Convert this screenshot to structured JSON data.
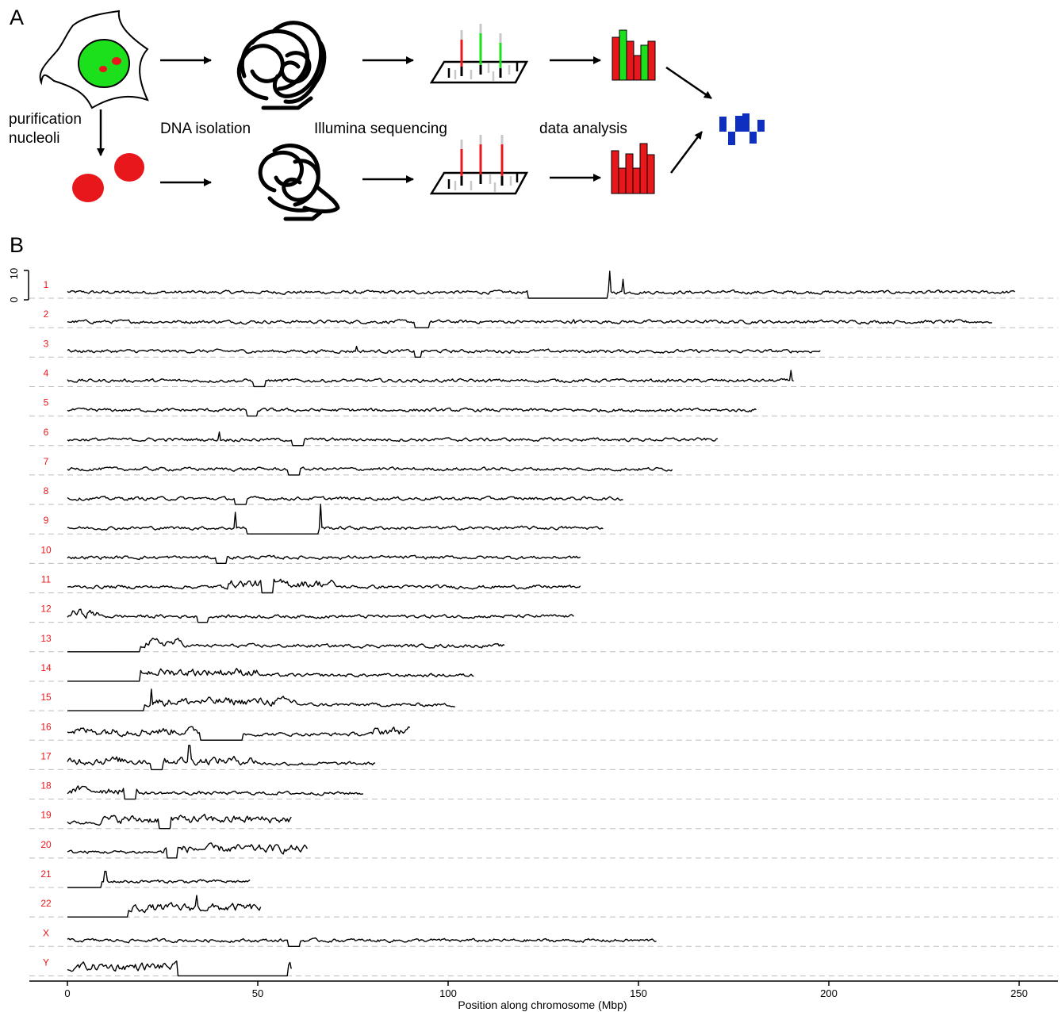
{
  "panel_a": {
    "label": "A",
    "steps": {
      "purification": [
        "purification",
        "nucleoli"
      ],
      "dna_isolation": "DNA isolation",
      "sequencing": "Illumina sequencing",
      "analysis": "data analysis"
    },
    "colors": {
      "nucleus": "#1be01b",
      "nucleoli": "#e8171b",
      "result": "#0f2fc0",
      "gray": "#c8c8c8"
    }
  },
  "panel_b": {
    "label": "B",
    "scale_bar_ticks": [
      "0",
      "10"
    ],
    "chart_data": {
      "type": "line",
      "xlabel": "Position along chromosome (Mbp)",
      "x_ticks": [
        0,
        50,
        100,
        150,
        200,
        250
      ],
      "xlim": [
        -10,
        260
      ],
      "ylim_per_track": [
        0,
        10
      ],
      "series": [
        {
          "name": "1",
          "length": 249,
          "gaps": [
            [
              121,
              142
            ]
          ],
          "spikes": [
            [
              142.5,
              10
            ],
            [
              146,
              7
            ]
          ],
          "wide": []
        },
        {
          "name": "2",
          "length": 243,
          "gaps": [
            [
              91,
              95
            ]
          ],
          "spikes": [
            [
              133,
              3
            ]
          ],
          "wide": []
        },
        {
          "name": "3",
          "length": 198,
          "gaps": [
            [
              91,
              93
            ]
          ],
          "spikes": [
            [
              76,
              4
            ]
          ],
          "wide": []
        },
        {
          "name": "4",
          "length": 191,
          "gaps": [
            [
              49,
              52
            ]
          ],
          "spikes": [
            [
              190,
              6
            ]
          ],
          "wide": []
        },
        {
          "name": "5",
          "length": 181,
          "gaps": [
            [
              47,
              50
            ]
          ],
          "spikes": [],
          "wide": []
        },
        {
          "name": "6",
          "length": 171,
          "gaps": [
            [
              59,
              62
            ]
          ],
          "spikes": [
            [
              40,
              5
            ]
          ],
          "wide": []
        },
        {
          "name": "7",
          "length": 159,
          "gaps": [
            [
              58,
              61
            ]
          ],
          "spikes": [
            [
              61,
              8
            ]
          ],
          "wide": []
        },
        {
          "name": "8",
          "length": 146,
          "gaps": [
            [
              44,
              47
            ]
          ],
          "spikes": [],
          "wide": []
        },
        {
          "name": "9",
          "length": 141,
          "gaps": [
            [
              47,
              66
            ]
          ],
          "spikes": [
            [
              44,
              8
            ],
            [
              66.5,
              11
            ]
          ],
          "wide": []
        },
        {
          "name": "10",
          "length": 135,
          "gaps": [
            [
              39,
              42
            ]
          ],
          "spikes": [],
          "wide": []
        },
        {
          "name": "11",
          "length": 135,
          "gaps": [
            [
              51,
              54
            ]
          ],
          "spikes": [],
          "wide": [
            [
              40,
              70
            ]
          ]
        },
        {
          "name": "12",
          "length": 133,
          "gaps": [
            [
              34,
              37
            ]
          ],
          "spikes": [],
          "wide": [
            [
              0,
              8
            ]
          ]
        },
        {
          "name": "13",
          "length": 115,
          "gaps": [
            [
              0,
              19
            ]
          ],
          "spikes": [],
          "wide": [
            [
              19,
              30
            ]
          ]
        },
        {
          "name": "14",
          "length": 107,
          "gaps": [
            [
              0,
              19
            ]
          ],
          "spikes": [],
          "wide": [
            [
              19,
              50
            ]
          ]
        },
        {
          "name": "15",
          "length": 102,
          "gaps": [
            [
              0,
              20
            ]
          ],
          "spikes": [
            [
              22,
              8
            ]
          ],
          "wide": [
            [
              20,
              60
            ]
          ]
        },
        {
          "name": "16",
          "length": 90,
          "gaps": [
            [
              35,
              46
            ]
          ],
          "spikes": [],
          "wide": [
            [
              0,
              35
            ],
            [
              80,
              90
            ]
          ]
        },
        {
          "name": "17",
          "length": 81,
          "gaps": [
            [
              22,
              25
            ]
          ],
          "spikes": [
            [
              32,
              9
            ]
          ],
          "wide": [
            [
              0,
              50
            ]
          ]
        },
        {
          "name": "18",
          "length": 78,
          "gaps": [
            [
              15,
              18
            ]
          ],
          "spikes": [],
          "wide": [
            [
              0,
              15
            ]
          ]
        },
        {
          "name": "19",
          "length": 59,
          "gaps": [
            [
              24,
              27
            ]
          ],
          "spikes": [],
          "wide": [
            [
              8,
              59
            ]
          ]
        },
        {
          "name": "20",
          "length": 63,
          "gaps": [
            [
              26,
              29
            ]
          ],
          "spikes": [],
          "wide": [
            [
              25,
              63
            ]
          ]
        },
        {
          "name": "21",
          "length": 48,
          "gaps": [
            [
              0,
              9
            ]
          ],
          "spikes": [
            [
              10,
              6
            ]
          ],
          "wide": []
        },
        {
          "name": "22",
          "length": 51,
          "gaps": [
            [
              0,
              16
            ]
          ],
          "spikes": [
            [
              34,
              8
            ]
          ],
          "wide": [
            [
              16,
              51
            ]
          ]
        },
        {
          "name": "X",
          "length": 155,
          "gaps": [
            [
              58,
              61
            ]
          ],
          "spikes": [],
          "wide": []
        },
        {
          "name": "Y",
          "length": 59,
          "gaps": [
            [
              29,
              58
            ]
          ],
          "spikes": [
            [
              58.5,
              5
            ]
          ],
          "wide": [
            [
              2,
              29
            ]
          ]
        }
      ]
    }
  }
}
